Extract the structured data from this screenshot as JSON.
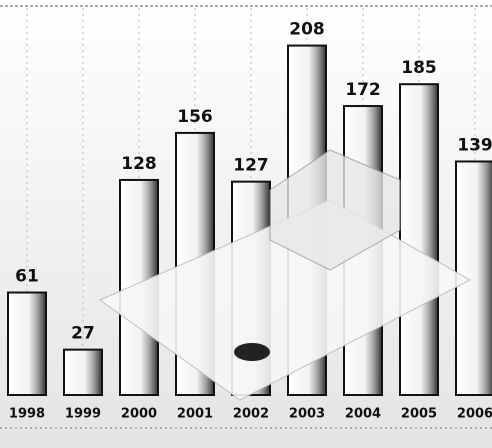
{
  "chart_data": {
    "type": "bar",
    "categories": [
      "1998",
      "1999",
      "2000",
      "2001",
      "2002",
      "2003",
      "2004",
      "2005",
      "2006"
    ],
    "values": [
      61,
      27,
      128,
      156,
      127,
      208,
      172,
      185,
      139
    ]
  }
}
